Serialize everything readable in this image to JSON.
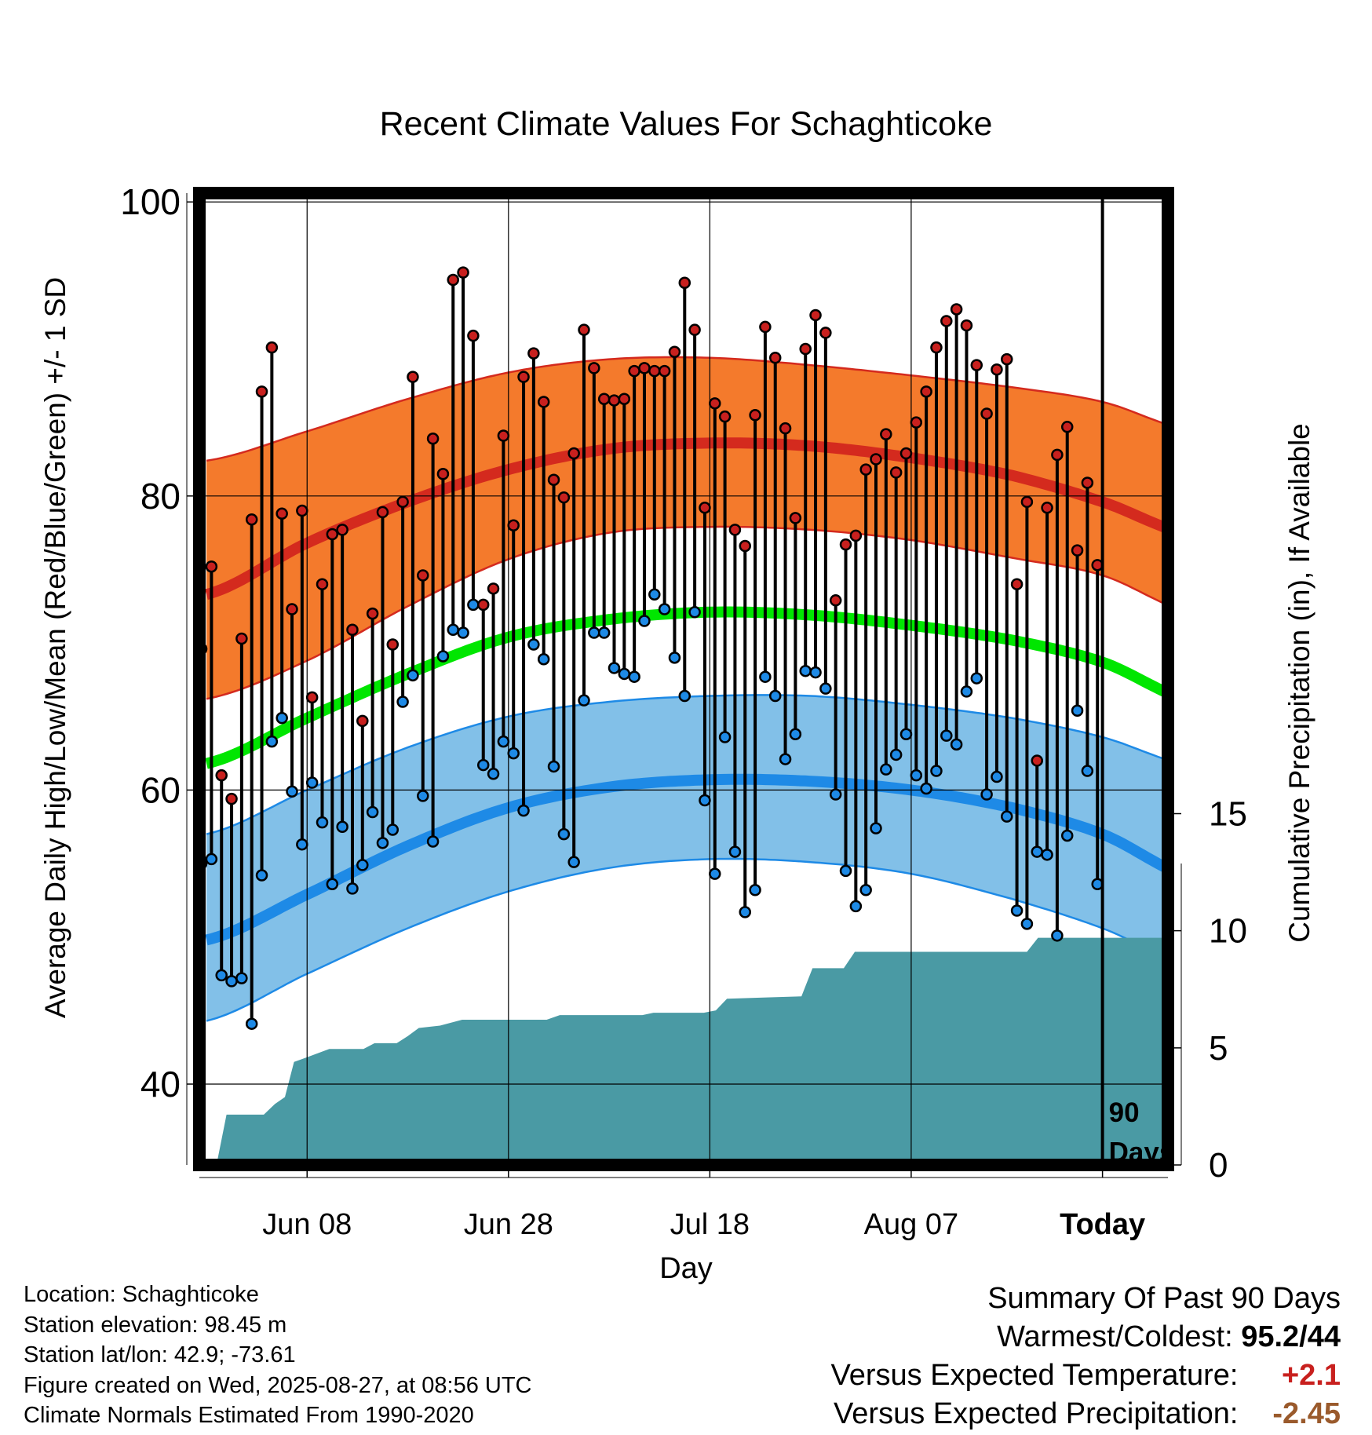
{
  "chart_data": {
    "type": "line",
    "title": "Recent Climate Values For Schaghticoke",
    "xlabel": "Day",
    "ylabel": "Average Daily High/Low/Mean (Red/Blue/Green) +/- 1 SD",
    "y2label": "Cumulative Precipitation (in), If Available",
    "ylim": [
      34.5,
      100.6
    ],
    "y_ticks": [
      40,
      60,
      80,
      100
    ],
    "y2lim": [
      0,
      41.5
    ],
    "y2_ticks": [
      0,
      5,
      10,
      15
    ],
    "x_range": [
      -89.7,
      6.5
    ],
    "x_ticks": [
      {
        "offset": -79,
        "label": "Jun 08"
      },
      {
        "offset": -59,
        "label": "Jun 28"
      },
      {
        "offset": -39,
        "label": "Jul 18"
      },
      {
        "offset": -19,
        "label": "Aug 07"
      },
      {
        "offset": 0,
        "label": "Today"
      }
    ],
    "today_marker": {
      "offset": 0,
      "label_line1": "90",
      "label_line2": "Days"
    },
    "normals": {
      "offsets": [
        -89,
        -79,
        -69,
        -59,
        -49,
        -39,
        -29,
        -19,
        -9,
        0,
        9
      ],
      "high_mean": [
        73.3,
        76.8,
        79.6,
        81.8,
        83.2,
        83.6,
        83.4,
        82.6,
        81.4,
        79.6,
        77.3
      ],
      "high_upper": [
        82.4,
        84.4,
        86.6,
        88.4,
        89.3,
        89.4,
        88.9,
        88.2,
        87.4,
        86.4,
        84.4
      ],
      "high_lower": [
        66.2,
        68.8,
        72.5,
        75.7,
        77.5,
        77.9,
        77.7,
        77.0,
        75.8,
        74.6,
        72.0
      ],
      "mean_mean": [
        61.8,
        64.9,
        67.9,
        70.4,
        71.6,
        72.1,
        71.9,
        71.2,
        70.2,
        68.7,
        66.0
      ],
      "low_mean": [
        49.8,
        52.9,
        56.2,
        58.8,
        60.2,
        60.7,
        60.6,
        60.0,
        58.8,
        57.0,
        54.0
      ],
      "low_upper": [
        57.0,
        60.0,
        62.9,
        65.0,
        66.0,
        66.4,
        66.4,
        65.8,
        64.9,
        63.6,
        61.6
      ],
      "low_lower": [
        44.3,
        47.5,
        50.6,
        53.1,
        54.7,
        55.3,
        55.1,
        54.3,
        52.6,
        50.6,
        48.0
      ]
    },
    "series": [
      {
        "name": "High",
        "color": "#c8201e",
        "values": [
          69.6,
          75.2,
          61.0,
          59.4,
          70.3,
          78.4,
          87.1,
          90.1,
          78.8,
          72.3,
          79.0,
          66.3,
          74.0,
          77.4,
          77.7,
          70.9,
          64.7,
          72.0,
          78.9,
          69.9,
          79.6,
          88.1,
          74.6,
          83.9,
          81.5,
          94.7,
          95.2,
          90.9,
          72.6,
          73.7,
          84.1,
          78.0,
          88.1,
          89.7,
          86.4,
          81.1,
          79.9,
          82.9,
          91.3,
          88.7,
          86.6,
          86.5,
          86.6,
          88.5,
          88.7,
          88.5,
          88.5,
          89.8,
          94.5,
          91.3,
          79.2,
          86.3,
          85.4,
          77.7,
          76.6,
          85.5,
          91.5,
          89.4,
          84.6,
          78.5,
          90.0,
          92.3,
          91.1,
          72.9,
          76.7,
          77.3,
          81.8,
          82.5,
          84.2,
          81.6,
          82.9,
          85.0,
          87.1,
          90.1,
          91.9,
          92.7,
          91.6,
          88.9,
          85.6,
          88.6,
          89.3,
          74.0,
          79.6,
          62.0,
          79.2,
          82.8,
          84.7,
          76.3,
          80.9,
          75.3
        ]
      },
      {
        "name": "Low",
        "color": "#1e8ae6",
        "values": [
          55.0,
          55.3,
          47.4,
          47.0,
          47.2,
          44.1,
          54.2,
          63.3,
          64.9,
          59.9,
          56.3,
          60.5,
          57.8,
          53.6,
          57.5,
          53.3,
          54.9,
          58.5,
          56.4,
          57.3,
          66.0,
          67.8,
          59.6,
          56.5,
          69.1,
          70.9,
          70.7,
          72.6,
          61.7,
          61.1,
          63.3,
          62.5,
          58.6,
          69.9,
          68.9,
          61.6,
          57.0,
          55.1,
          66.1,
          70.7,
          70.7,
          68.3,
          67.9,
          67.7,
          71.5,
          73.3,
          72.3,
          69.0,
          66.4,
          72.1,
          59.3,
          54.3,
          63.6,
          55.8,
          51.7,
          53.2,
          67.7,
          66.4,
          62.1,
          63.8,
          68.1,
          68.0,
          66.9,
          59.7,
          54.5,
          52.1,
          53.2,
          57.4,
          61.4,
          62.4,
          63.8,
          61.0,
          60.1,
          61.3,
          63.7,
          63.1,
          66.7,
          67.6,
          59.7,
          60.9,
          58.2,
          51.8,
          50.9,
          55.8,
          55.6,
          50.1,
          56.9,
          65.4,
          61.3,
          53.6
        ]
      }
    ],
    "precip": {
      "name": "Cumulative Precipitation",
      "color": "#4a9aa4",
      "points": [
        [
          -88,
          0
        ],
        [
          -87,
          2.15
        ],
        [
          -83.3,
          2.15
        ],
        [
          -82.2,
          2.6
        ],
        [
          -81.2,
          2.9
        ],
        [
          -80.3,
          4.4
        ],
        [
          -79,
          4.6
        ],
        [
          -76.8,
          4.95
        ],
        [
          -73.4,
          4.95
        ],
        [
          -72.3,
          5.2
        ],
        [
          -70.1,
          5.2
        ],
        [
          -69,
          5.5
        ],
        [
          -67.9,
          5.85
        ],
        [
          -65.8,
          5.95
        ],
        [
          -63.6,
          6.2
        ],
        [
          -55.2,
          6.2
        ],
        [
          -53.9,
          6.4
        ],
        [
          -45.7,
          6.4
        ],
        [
          -44.6,
          6.5
        ],
        [
          -39.6,
          6.5
        ],
        [
          -38.4,
          6.6
        ],
        [
          -37.3,
          7.1
        ],
        [
          -29.9,
          7.2
        ],
        [
          -28.8,
          8.4
        ],
        [
          -25.7,
          8.4
        ],
        [
          -24.6,
          9.1
        ],
        [
          -7.5,
          9.1
        ],
        [
          -6.4,
          9.7
        ],
        [
          9.4,
          9.7
        ]
      ]
    }
  },
  "footer": {
    "location": "Location: Schaghticoke",
    "elevation": "Station elevation: 98.45 m",
    "latlon": "Station lat/lon: 42.9; -73.61",
    "created": "Figure created on Wed, 2025-08-27, at 08:56 UTC",
    "normals": "Climate Normals Estimated From 1990-2020"
  },
  "summary": {
    "heading": "Summary Of Past 90 Days",
    "warmest_label": "Warmest/Coldest:",
    "warmest_value": "95.2/44",
    "temp_label": "Versus Expected Temperature:",
    "temp_value": "+2.1",
    "precip_label": "Versus Expected Precipitation:",
    "precip_value": "-2.45",
    "temp_color": "#c8201e",
    "precip_color": "#9a5a2c"
  }
}
